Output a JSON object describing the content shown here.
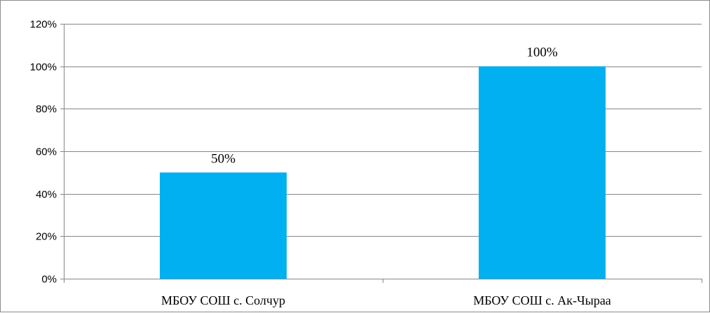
{
  "chart_data": {
    "type": "bar",
    "categories": [
      "МБОУ СОШ с. Солчур",
      "МБОУ СОШ с. Ак-Чыраа"
    ],
    "values": [
      50,
      100
    ],
    "data_labels": [
      "50%",
      "100%"
    ],
    "yticks": [
      "0%",
      "20%",
      "40%",
      "60%",
      "80%",
      "100%",
      "120%"
    ],
    "ylim": [
      0,
      120
    ],
    "grid": true,
    "legend": "none",
    "bar_color": "#00B0F0",
    "gridline_color": "#868686"
  }
}
